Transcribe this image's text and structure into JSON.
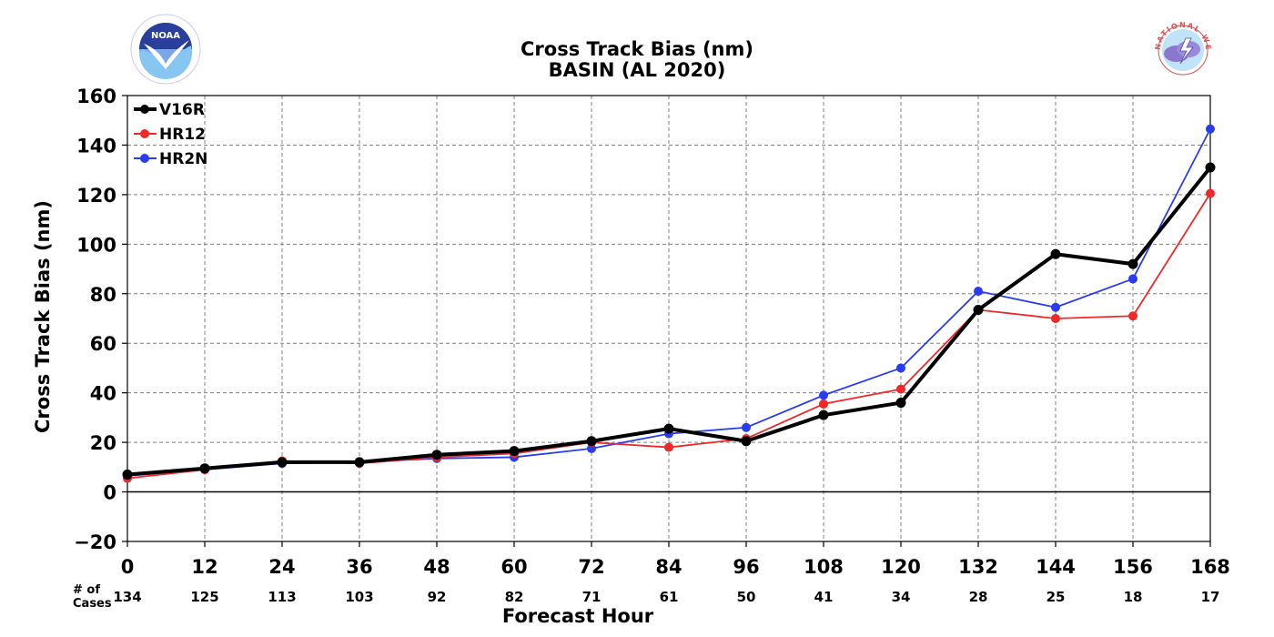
{
  "chart_data": {
    "type": "line",
    "title": "Cross Track Bias (nm)",
    "subtitle": "BASIN (AL 2020)",
    "xlabel": "Forecast Hour",
    "ylabel": "Cross Track Bias (nm)",
    "x": [
      0,
      12,
      24,
      36,
      48,
      60,
      72,
      84,
      96,
      108,
      120,
      132,
      144,
      156,
      168
    ],
    "xlim": [
      0,
      168
    ],
    "ylim": [
      -20,
      160
    ],
    "yticks": [
      -20,
      0,
      20,
      40,
      60,
      80,
      100,
      120,
      140,
      160
    ],
    "grid": true,
    "legend_position": "top-left",
    "cases_label_line1": "# of",
    "cases_label_line2": "Cases",
    "cases": [
      134,
      125,
      113,
      103,
      92,
      82,
      71,
      61,
      50,
      41,
      34,
      28,
      25,
      18,
      17
    ],
    "series": [
      {
        "name": "V16R",
        "color": "#000000",
        "values": [
          7,
          9.5,
          12,
          12,
          15,
          16.5,
          20.5,
          25.5,
          20.5,
          31,
          36,
          73.5,
          96,
          92,
          131
        ]
      },
      {
        "name": "HR12",
        "color": "#f0282a",
        "values": [
          5.5,
          9,
          12.5,
          11.5,
          14,
          15.5,
          20,
          18,
          21.5,
          35.5,
          41.5,
          73.5,
          70,
          71,
          120.5
        ]
      },
      {
        "name": "HR2N",
        "color": "#2a3cf0",
        "values": [
          6.5,
          9,
          11.5,
          12,
          13.5,
          14,
          17.5,
          23.5,
          26,
          39,
          50,
          81,
          74.5,
          86,
          146.5
        ]
      }
    ]
  },
  "logos": {
    "left": {
      "icon": "noaa-logo",
      "text": "NOAA"
    },
    "right": {
      "icon": "national-weather-service-logo",
      "text": "NATIONAL WEATHER SERVICE"
    }
  }
}
